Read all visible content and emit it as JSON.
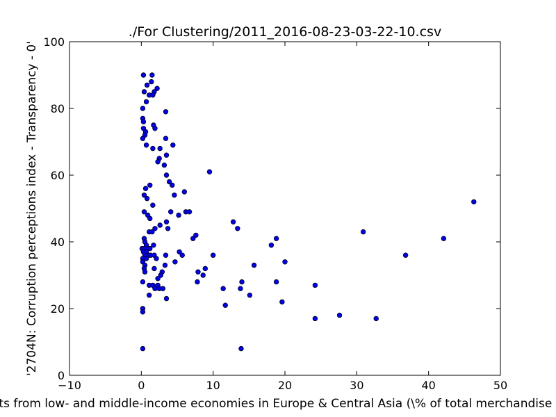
{
  "chart_data": {
    "type": "scatter",
    "title": "./For Clustering/2011_2016-08-23-03-22-10.csv",
    "xlabel": "Imports from low- and middle-income economies in Europe & Central Asia  (\\% of total merchandise imports)",
    "ylabel": "'2704N: Corruption perceptions index - Transparency - 0'",
    "xlim": [
      -10,
      50
    ],
    "ylim": [
      0,
      100
    ],
    "xticks": [
      -10,
      0,
      10,
      20,
      30,
      40,
      50
    ],
    "xtick_labels": [
      "−10",
      "0",
      "10",
      "20",
      "30",
      "40",
      "50"
    ],
    "yticks": [
      0,
      20,
      40,
      60,
      80,
      100
    ],
    "ytick_labels": [
      "0",
      "20",
      "40",
      "60",
      "80",
      "100"
    ],
    "marker_color": "#0000ff",
    "marker_edge_color": "#000000",
    "points": [
      [
        0.3,
        90
      ],
      [
        1.5,
        90
      ],
      [
        1.4,
        88
      ],
      [
        0.8,
        87
      ],
      [
        2.2,
        86
      ],
      [
        0.4,
        85
      ],
      [
        1.8,
        85
      ],
      [
        1.1,
        84
      ],
      [
        1.6,
        84
      ],
      [
        0.7,
        82
      ],
      [
        0.2,
        80
      ],
      [
        3.4,
        79
      ],
      [
        0.2,
        77
      ],
      [
        0.3,
        76
      ],
      [
        1.7,
        75
      ],
      [
        1.9,
        74
      ],
      [
        0.3,
        74
      ],
      [
        0.6,
        73
      ],
      [
        0.5,
        72
      ],
      [
        0.2,
        71
      ],
      [
        3.4,
        71
      ],
      [
        0.7,
        69
      ],
      [
        4.4,
        69
      ],
      [
        1.6,
        68
      ],
      [
        2.6,
        68
      ],
      [
        3.5,
        66
      ],
      [
        2.5,
        65
      ],
      [
        2.3,
        64
      ],
      [
        3.2,
        63
      ],
      [
        9.5,
        61
      ],
      [
        3.5,
        60
      ],
      [
        3.9,
        58
      ],
      [
        4.3,
        57
      ],
      [
        1.2,
        57
      ],
      [
        0.6,
        56
      ],
      [
        6.0,
        55
      ],
      [
        0.4,
        54
      ],
      [
        4.6,
        54
      ],
      [
        0.8,
        53
      ],
      [
        1.6,
        51
      ],
      [
        0.4,
        49
      ],
      [
        4.1,
        49
      ],
      [
        6.2,
        49
      ],
      [
        6.7,
        49
      ],
      [
        0.9,
        48
      ],
      [
        5.2,
        48
      ],
      [
        1.2,
        47
      ],
      [
        3.5,
        46
      ],
      [
        12.8,
        46
      ],
      [
        2.6,
        45
      ],
      [
        1.9,
        44
      ],
      [
        3.7,
        44
      ],
      [
        13.4,
        44
      ],
      [
        1.1,
        43
      ],
      [
        1.5,
        43
      ],
      [
        30.9,
        43
      ],
      [
        7.6,
        42
      ],
      [
        7.2,
        41
      ],
      [
        0.4,
        41
      ],
      [
        18.8,
        41
      ],
      [
        42.1,
        41
      ],
      [
        0.5,
        40
      ],
      [
        0.7,
        39
      ],
      [
        1.7,
        39
      ],
      [
        18.1,
        39
      ],
      [
        0.1,
        38
      ],
      [
        0.4,
        38
      ],
      [
        0.9,
        38
      ],
      [
        1.2,
        38
      ],
      [
        0.3,
        37
      ],
      [
        0.7,
        37
      ],
      [
        5.3,
        37
      ],
      [
        0.5,
        36
      ],
      [
        1.0,
        36
      ],
      [
        1.3,
        36
      ],
      [
        1.8,
        36
      ],
      [
        3.4,
        36
      ],
      [
        5.7,
        36
      ],
      [
        10.0,
        36
      ],
      [
        36.8,
        36
      ],
      [
        0.2,
        35
      ],
      [
        0.7,
        35
      ],
      [
        2.1,
        35
      ],
      [
        0.2,
        34
      ],
      [
        4.7,
        34
      ],
      [
        20.0,
        34
      ],
      [
        0.5,
        33
      ],
      [
        3.3,
        33
      ],
      [
        15.7,
        33
      ],
      [
        0.4,
        32
      ],
      [
        1.8,
        32
      ],
      [
        8.9,
        32
      ],
      [
        0.5,
        31
      ],
      [
        2.9,
        31
      ],
      [
        7.9,
        31
      ],
      [
        2.7,
        30
      ],
      [
        8.6,
        30
      ],
      [
        2.3,
        29
      ],
      [
        0.2,
        28
      ],
      [
        7.8,
        28
      ],
      [
        14.0,
        28
      ],
      [
        18.8,
        28
      ],
      [
        1.1,
        27
      ],
      [
        1.6,
        27
      ],
      [
        2.3,
        27
      ],
      [
        24.2,
        27
      ],
      [
        1.9,
        26
      ],
      [
        2.5,
        26
      ],
      [
        3.0,
        26
      ],
      [
        11.4,
        26
      ],
      [
        13.8,
        26
      ],
      [
        1.1,
        24
      ],
      [
        15.1,
        24
      ],
      [
        3.5,
        23
      ],
      [
        19.6,
        22
      ],
      [
        11.7,
        21
      ],
      [
        0.2,
        20
      ],
      [
        0.2,
        19
      ],
      [
        27.6,
        18
      ],
      [
        24.2,
        17
      ],
      [
        32.7,
        17
      ],
      [
        0.2,
        8
      ],
      [
        13.9,
        8
      ],
      [
        46.3,
        52
      ]
    ]
  }
}
